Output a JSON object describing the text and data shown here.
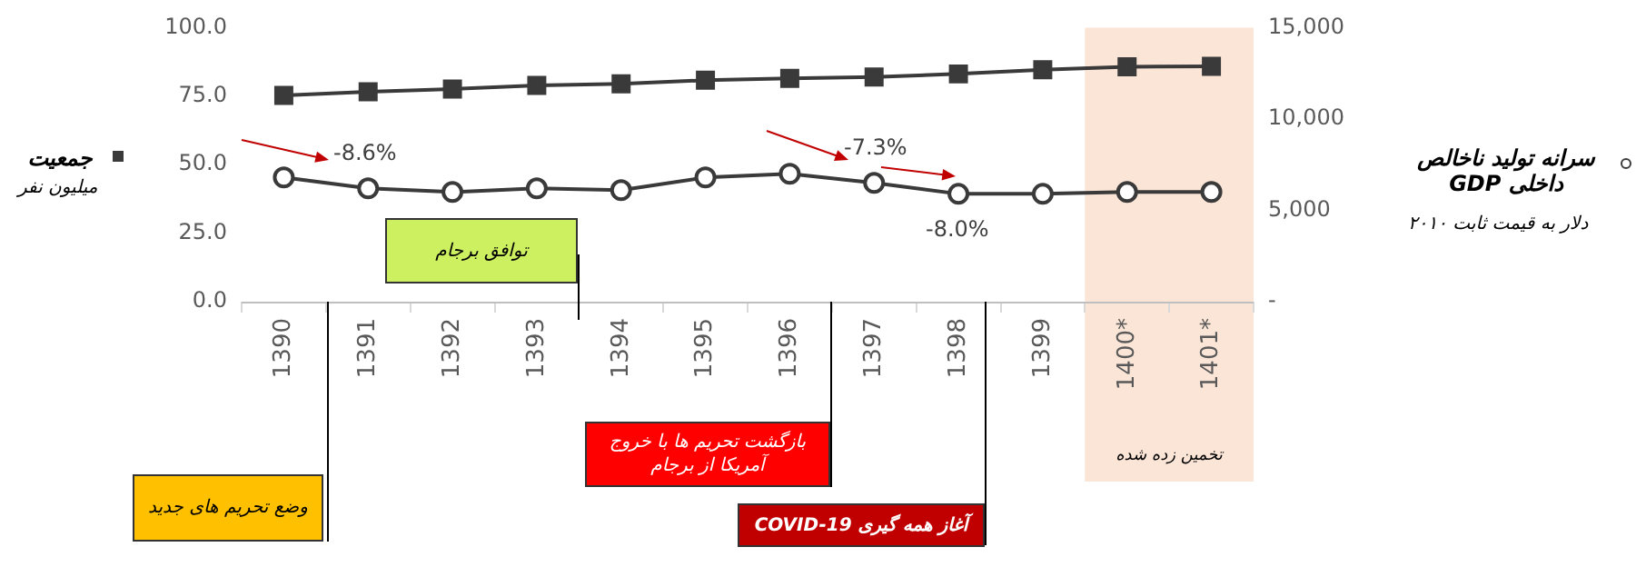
{
  "chart_data": {
    "type": "line",
    "categories": [
      "1390",
      "1391",
      "1392",
      "1393",
      "1394",
      "1395",
      "1396",
      "1397",
      "1398",
      "1399",
      "1400*",
      "1401*"
    ],
    "series": [
      {
        "name": "جمعیت",
        "color": "#3a3a3a",
        "marker": "square",
        "values": [
          75.3,
          76.6,
          77.6,
          78.9,
          79.5,
          80.8,
          81.5,
          82.0,
          83.1,
          84.6,
          85.7,
          85.9
        ]
      },
      {
        "name": "سرانه تولید ناخالص داخلی GDP",
        "color": "#3a3a3a",
        "marker": "circle",
        "axis": "y2",
        "values": [
          6800,
          6200,
          6000,
          6200,
          6100,
          6800,
          7000,
          6500,
          5900,
          5900,
          6000,
          6000
        ]
      }
    ],
    "ylabel": "میلیون نفر",
    "y2label": "دلار به قیمت ثابت ۲۰۱۰",
    "ylim": [
      0,
      100
    ],
    "yticks": [
      {
        "value": 0,
        "label": "0.0"
      },
      {
        "value": 25,
        "label": "25.0"
      },
      {
        "value": 50,
        "label": "50.0"
      },
      {
        "value": 75,
        "label": "75.0"
      },
      {
        "value": 100,
        "label": "100.0"
      }
    ],
    "y2lim": [
      0,
      15000
    ],
    "y2ticks": [
      {
        "value": 0,
        "label": "-"
      },
      {
        "value": 5000,
        "label": "5,000"
      },
      {
        "value": 10000,
        "label": "10,000"
      },
      {
        "value": 15000,
        "label": "15,000"
      }
    ],
    "bands": [
      {
        "axis": "x",
        "from": "1400*",
        "to": "1401*",
        "label": "تخمین زده شده",
        "color": "#fbe5d6"
      }
    ],
    "annotations": [
      "-8.6%",
      "-7.3%",
      "-8.0%",
      "وضع تحریم های جدید",
      "توافق برجام",
      "بازگشت تحریم ها با خروج آمریکا از برجام",
      "آغاز همه گیری COVID-19"
    ],
    "grid": false,
    "legend": "right",
    "line_style": "solid"
  }
}
